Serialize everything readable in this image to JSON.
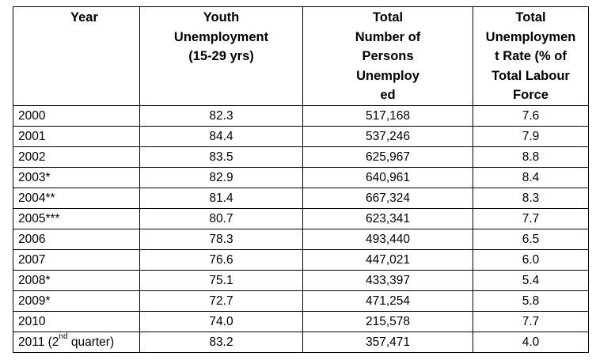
{
  "table": {
    "headers": {
      "year": "Year",
      "youth": [
        "Youth",
        "Unemployment",
        "(15-29 yrs)"
      ],
      "total_persons": [
        "Total",
        "Number of",
        "Persons",
        "Unemploy",
        "ed"
      ],
      "rate": [
        "Total",
        "Unemploymen",
        "t Rate (% of",
        "Total Labour",
        "Force"
      ]
    },
    "rows": [
      {
        "year": "2000",
        "youth": "82.3",
        "total": "517,168",
        "rate": "7.6"
      },
      {
        "year": "2001",
        "youth": "84.4",
        "total": "537,246",
        "rate": "7.9"
      },
      {
        "year": "2002",
        "youth": "83.5",
        "total": "625,967",
        "rate": "8.8"
      },
      {
        "year": "2003*",
        "youth": "82.9",
        "total": "640,961",
        "rate": "8.4"
      },
      {
        "year": "2004**",
        "youth": "81.4",
        "total": "667,324",
        "rate": "8.3"
      },
      {
        "year": "2005***",
        "youth": "80.7",
        "total": "623,341",
        "rate": "7.7"
      },
      {
        "year": "2006",
        "youth": "78.3",
        "total": "493,440",
        "rate": "6.5"
      },
      {
        "year": "2007",
        "youth": "76.6",
        "total": "447,021",
        "rate": "6.0"
      },
      {
        "year": "2008*",
        "youth": "75.1",
        "total": "433,397",
        "rate": "5.4"
      },
      {
        "year": "2009*",
        "youth": "72.7",
        "total": "471,254",
        "rate": "5.8"
      },
      {
        "year": "2010",
        "youth": "74.0",
        "total": "215,578",
        "rate": "7.7"
      }
    ],
    "last_row": {
      "year_prefix": "2011 (2",
      "year_sup": "nd",
      "year_suffix": " quarter)",
      "youth": "83.2",
      "total": "357,471",
      "rate": "4.0"
    }
  }
}
